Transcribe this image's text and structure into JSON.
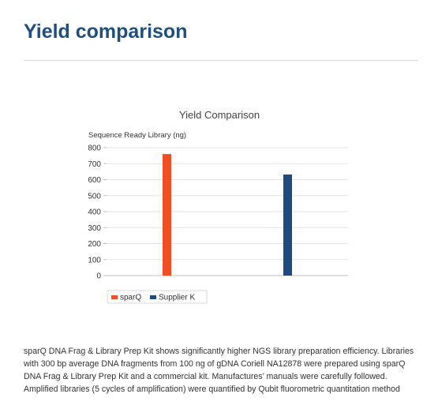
{
  "page": {
    "title": "Yield comparison",
    "description": "sparQ DNA Frag & Library Prep Kit shows significantly higher NGS library preparation efficiency. Libraries with 300 bp average DNA fragments from 100 ng of gDNA Coriell NA12878 were prepared using sparQ DNA Frag & Library Prep Kit and a commercial kit. Manufactures’ manuals were carefully followed. Amplified libraries (5 cycles of amplification) were quantified by Qubit fluorometric quantitation method"
  },
  "colors": {
    "title": "#1f4f7d"
  },
  "chart_data": {
    "type": "bar",
    "title": "Yield Comparison",
    "ylabel": "Sequence Ready Library (ng)",
    "xlabel": "",
    "ylim": [
      0,
      800
    ],
    "yticks": [
      0,
      100,
      200,
      300,
      400,
      500,
      600,
      700,
      800
    ],
    "grid": true,
    "legend": "bottom-left",
    "series": [
      {
        "name": "sparQ",
        "value": 760,
        "color": "#f04e23"
      },
      {
        "name": "Supplier K",
        "value": 632,
        "color": "#1f4a7e"
      }
    ]
  }
}
